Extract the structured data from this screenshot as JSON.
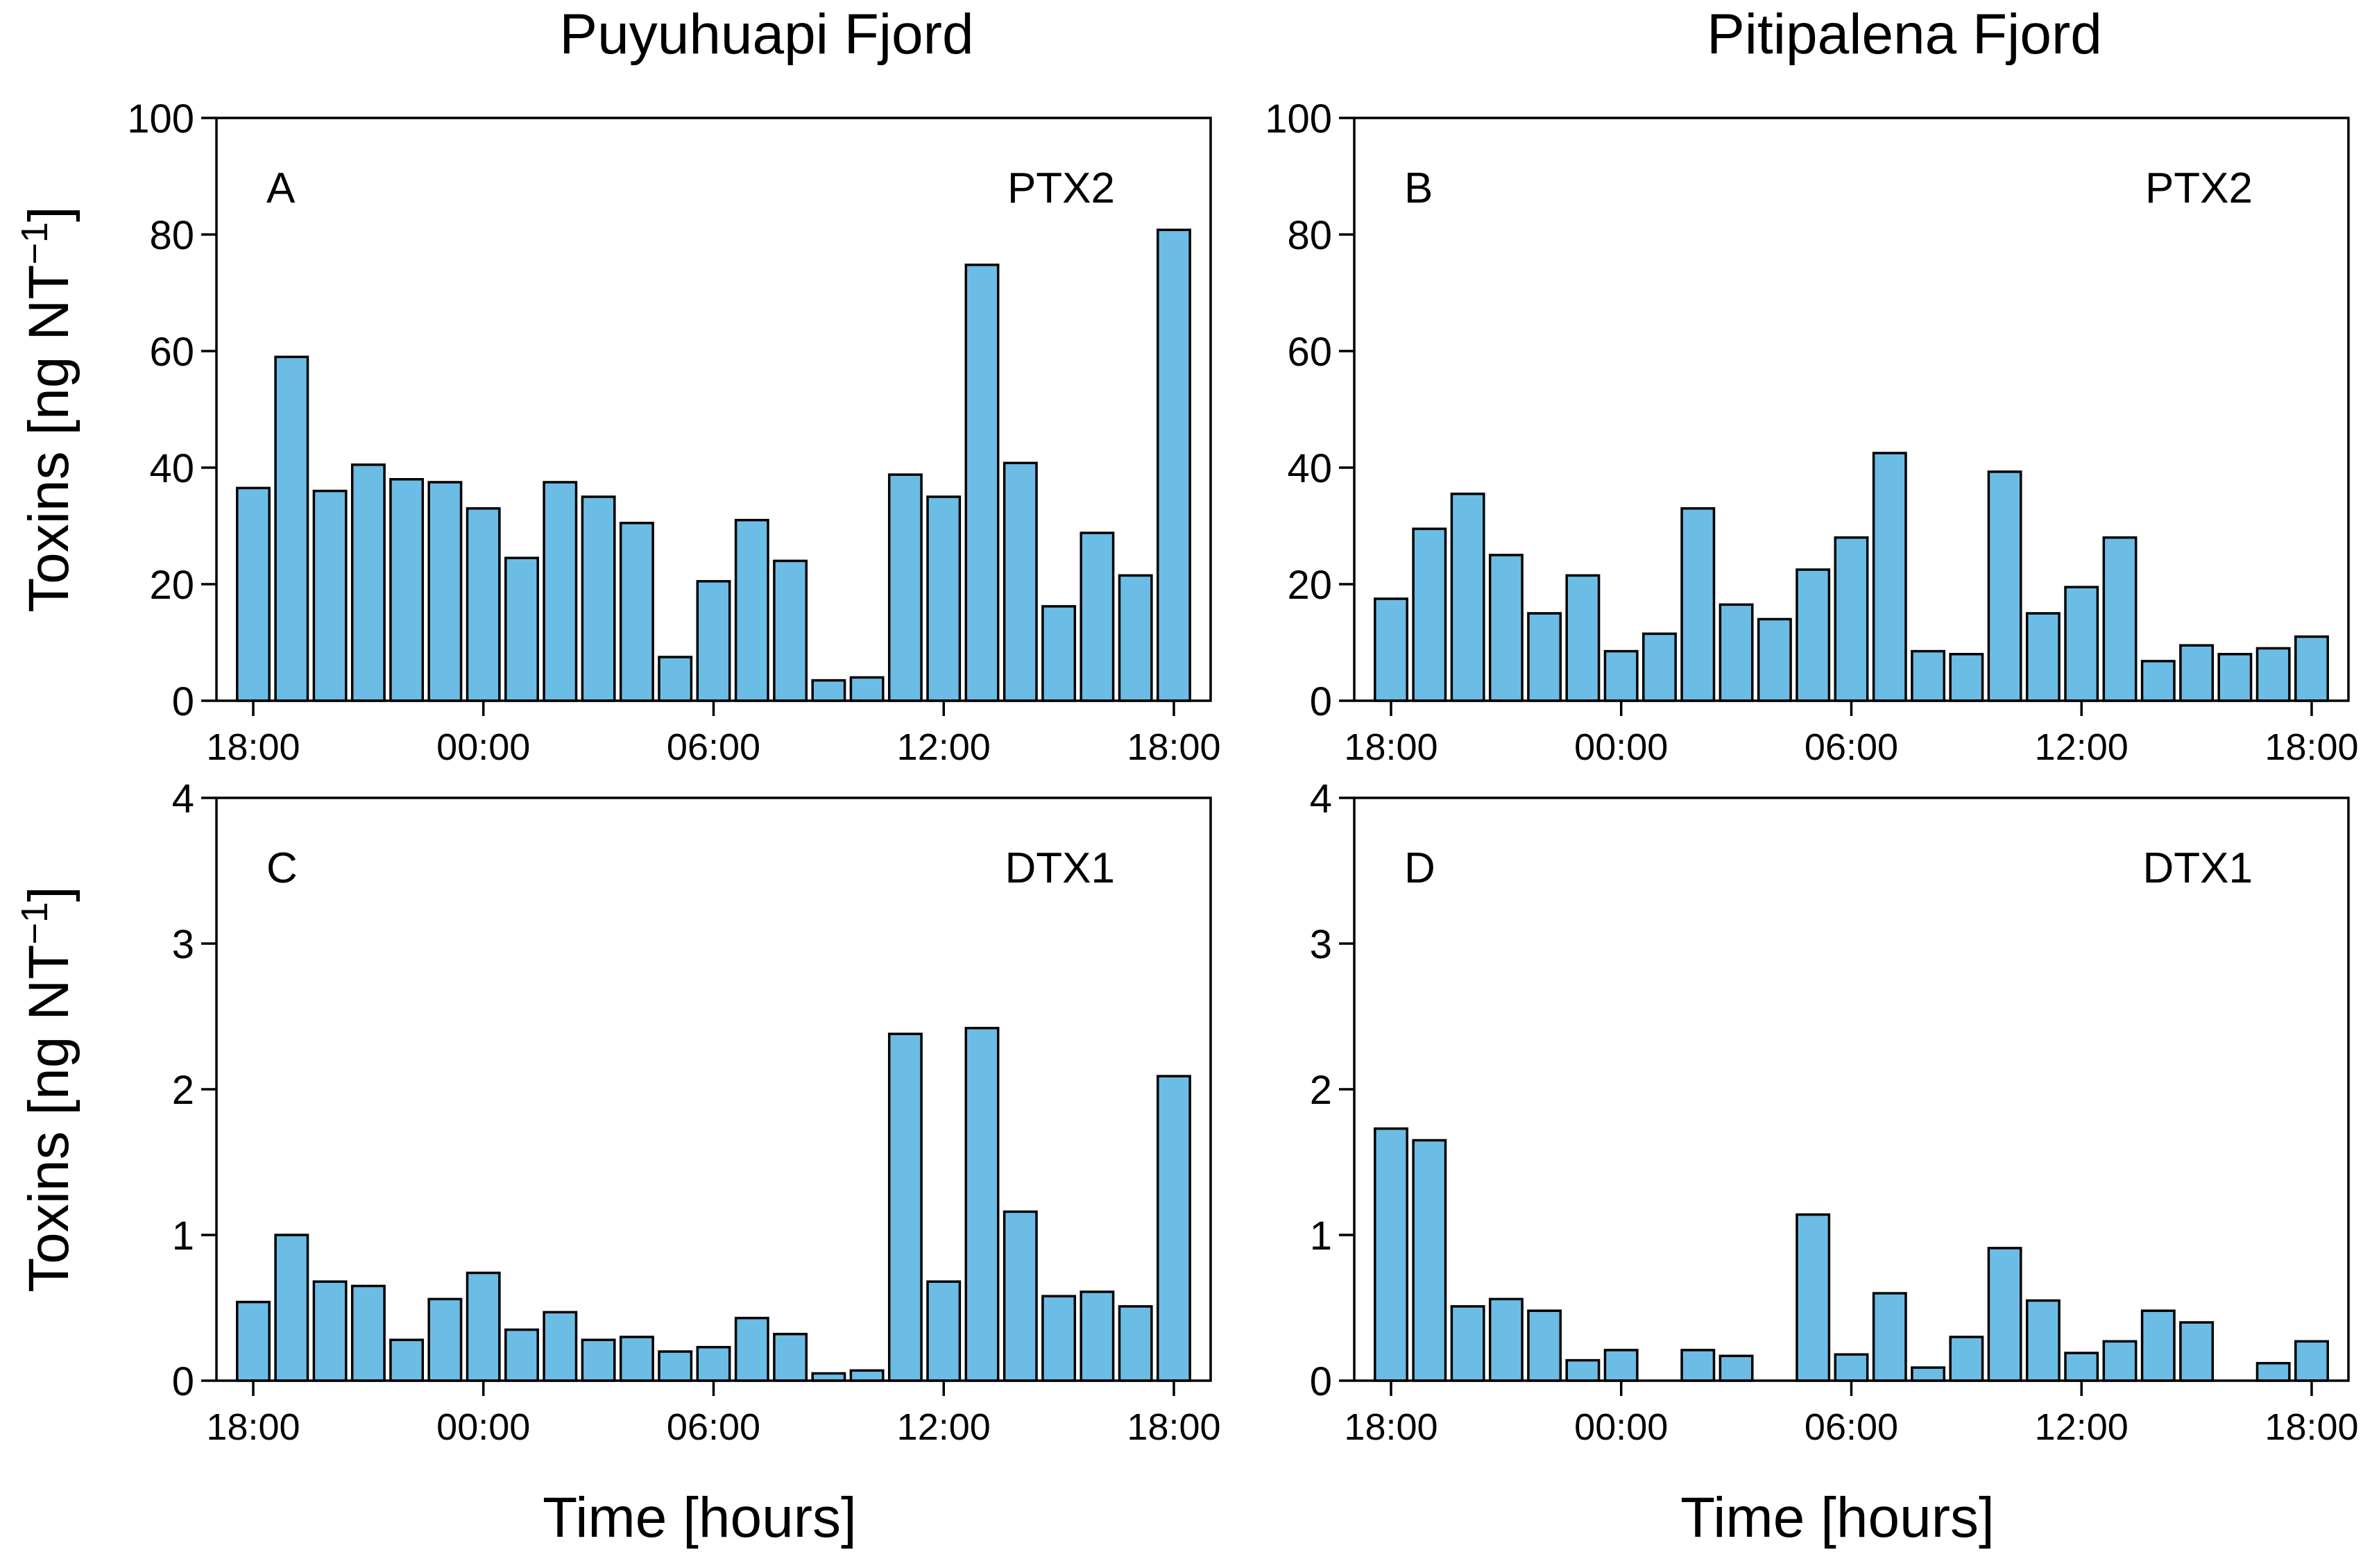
{
  "colors": {
    "bar_fill": "#6cbde5",
    "bar_stroke": "#000000",
    "axis": "#000000",
    "background": "#ffffff"
  },
  "column_titles": [
    "Puyuhuapi Fjord",
    "Pitipalena Fjord"
  ],
  "ylabel": {
    "main": "Toxins [ng NT",
    "sup": "−1",
    "close": "]"
  },
  "xlabel": "Time [hours]",
  "chart_data": [
    {
      "type": "bar",
      "panel": "A",
      "toxin": "PTX2",
      "column": "Puyuhuapi Fjord",
      "x": [
        18,
        19,
        20,
        21,
        22,
        23,
        24,
        25,
        26,
        27,
        28,
        29,
        30,
        31,
        32,
        33,
        34,
        35,
        36,
        37,
        38,
        39,
        40,
        41,
        42
      ],
      "values": [
        36.5,
        59,
        36,
        40.5,
        38,
        37.5,
        33,
        24.5,
        37.5,
        35,
        30.5,
        7.5,
        20.5,
        31,
        24,
        3.5,
        4,
        38.8,
        35,
        74.8,
        40.8,
        16.2,
        28.8,
        21.5,
        80.8
      ],
      "ylim": [
        0,
        100
      ],
      "yticks": [
        0,
        20,
        40,
        60,
        80,
        100
      ],
      "xticks": [
        {
          "x": 18,
          "label": "18:00"
        },
        {
          "x": 24,
          "label": "00:00"
        },
        {
          "x": 30,
          "label": "06:00"
        },
        {
          "x": 36,
          "label": "12:00"
        },
        {
          "x": 42,
          "label": "18:00"
        }
      ],
      "ylabel": "Toxins [ng NT−1]",
      "xlabel": ""
    },
    {
      "type": "bar",
      "panel": "B",
      "toxin": "PTX2",
      "column": "Pitipalena Fjord",
      "x": [
        18,
        19,
        20,
        21,
        22,
        23,
        24,
        25,
        26,
        27,
        28,
        29,
        30,
        31,
        32,
        33,
        34,
        35,
        36,
        37,
        38,
        39,
        40,
        41,
        42
      ],
      "values": [
        17.5,
        29.5,
        35.5,
        25,
        15,
        21.5,
        8.5,
        11.5,
        33,
        16.5,
        14,
        22.5,
        28,
        42.5,
        8.5,
        8,
        39.3,
        15,
        19.5,
        28,
        6.8,
        9.5,
        8,
        9,
        11
      ],
      "ylim": [
        0,
        100
      ],
      "yticks": [
        0,
        20,
        40,
        60,
        80,
        100
      ],
      "xticks": [
        {
          "x": 18,
          "label": "18:00"
        },
        {
          "x": 24,
          "label": "00:00"
        },
        {
          "x": 30,
          "label": "06:00"
        },
        {
          "x": 36,
          "label": "12:00"
        },
        {
          "x": 42,
          "label": "18:00"
        }
      ],
      "ylabel": "",
      "xlabel": ""
    },
    {
      "type": "bar",
      "panel": "C",
      "toxin": "DTX1",
      "column": "Puyuhuapi Fjord",
      "x": [
        18,
        19,
        20,
        21,
        22,
        23,
        24,
        25,
        26,
        27,
        28,
        29,
        30,
        31,
        32,
        33,
        34,
        35,
        36,
        37,
        38,
        39,
        40,
        41,
        42
      ],
      "values": [
        0.54,
        1,
        0.68,
        0.65,
        0.28,
        0.56,
        0.74,
        0.35,
        0.47,
        0.28,
        0.3,
        0.2,
        0.23,
        0.43,
        0.32,
        0.05,
        0.07,
        2.38,
        0.68,
        2.42,
        1.16,
        0.58,
        0.61,
        0.51,
        2.09
      ],
      "ylim": [
        0,
        4
      ],
      "yticks": [
        0,
        1,
        2,
        3,
        4
      ],
      "xticks": [
        {
          "x": 18,
          "label": "18:00"
        },
        {
          "x": 24,
          "label": "00:00"
        },
        {
          "x": 30,
          "label": "06:00"
        },
        {
          "x": 36,
          "label": "12:00"
        },
        {
          "x": 42,
          "label": "18:00"
        }
      ],
      "ylabel": "Toxins [ng NT−1]",
      "xlabel": "Time [hours]"
    },
    {
      "type": "bar",
      "panel": "D",
      "toxin": "DTX1",
      "column": "Pitipalena Fjord",
      "x": [
        18,
        19,
        20,
        21,
        22,
        23,
        24,
        25,
        26,
        27,
        28,
        29,
        30,
        31,
        32,
        33,
        34,
        35,
        36,
        37,
        38,
        39,
        40,
        41,
        42
      ],
      "values": [
        1.73,
        1.65,
        0.51,
        0.56,
        0.48,
        0.14,
        0.21,
        0,
        0.21,
        0.17,
        0,
        1.14,
        0.18,
        0.6,
        0.09,
        0.3,
        0.91,
        0.55,
        0.19,
        0.27,
        0.48,
        0.4,
        0,
        0.12,
        0.27
      ],
      "ylim": [
        0,
        4
      ],
      "yticks": [
        0,
        1,
        2,
        3,
        4
      ],
      "xticks": [
        {
          "x": 18,
          "label": "18:00"
        },
        {
          "x": 24,
          "label": "00:00"
        },
        {
          "x": 30,
          "label": "06:00"
        },
        {
          "x": 36,
          "label": "12:00"
        },
        {
          "x": 42,
          "label": "18:00"
        }
      ],
      "ylabel": "",
      "xlabel": "Time [hours]"
    }
  ]
}
